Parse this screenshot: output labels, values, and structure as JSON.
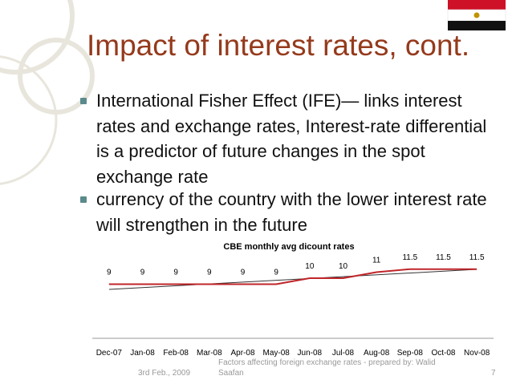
{
  "title": "Impact of interest rates, cont.",
  "bullets": [
    "International Fisher Effect (IFE)— links interest rates and exchange rates, Interest-rate differential is a predictor of future changes in the spot exchange rate",
    "currency of the country with the lower interest rate will strengthen in the future"
  ],
  "footer": {
    "date": "3rd Feb., 2009",
    "text": "Factors affecting foreign exchange rates - prepared by: Walid Saafan",
    "page": "7"
  },
  "chart_data": {
    "type": "line",
    "title": "CBE monthly avg dicount rates",
    "categories": [
      "Dec-07",
      "Jan-08",
      "Feb-08",
      "Mar-08",
      "Apr-08",
      "May-08",
      "Jun-08",
      "Jul-08",
      "Aug-08",
      "Sep-08",
      "Oct-08",
      "Nov-08"
    ],
    "values": [
      9,
      9,
      9,
      9,
      9,
      9,
      10,
      10,
      11,
      11.5,
      11.5,
      11.5
    ],
    "color": "#c0252a",
    "ylim": [
      0,
      14
    ]
  }
}
